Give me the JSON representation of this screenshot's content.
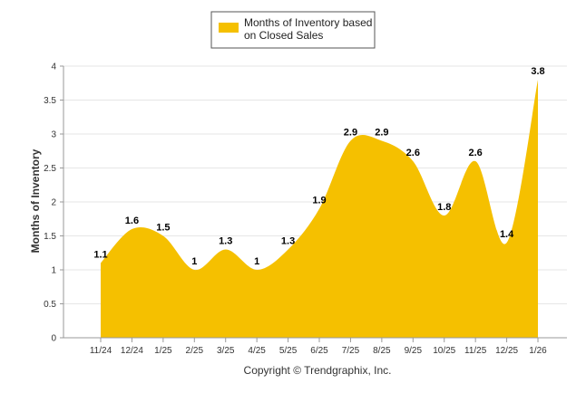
{
  "chart_data": {
    "type": "area",
    "title": "",
    "xlabel": "",
    "ylabel": "Months of Inventory",
    "ylim": [
      0,
      4
    ],
    "yticks": [
      0,
      0.5,
      1,
      1.5,
      2,
      2.5,
      3,
      3.5,
      4
    ],
    "grid": true,
    "legend_position": "top-center",
    "categories": [
      "11/24",
      "12/24",
      "1/25",
      "2/25",
      "3/25",
      "4/25",
      "5/25",
      "6/25",
      "7/25",
      "8/25",
      "9/25",
      "10/25",
      "11/25",
      "12/25",
      "1/26"
    ],
    "series": [
      {
        "name": "Months of Inventory based on Closed Sales",
        "legend_lines": [
          "Months of Inventory based",
          "on Closed Sales"
        ],
        "color": "#F5C000",
        "values": [
          1.1,
          1.6,
          1.5,
          1,
          1.3,
          1,
          1.3,
          1.9,
          2.9,
          2.9,
          2.6,
          1.8,
          2.6,
          1.4,
          3.8
        ]
      }
    ],
    "credit": "Copyright © Trendgraphix, Inc."
  }
}
